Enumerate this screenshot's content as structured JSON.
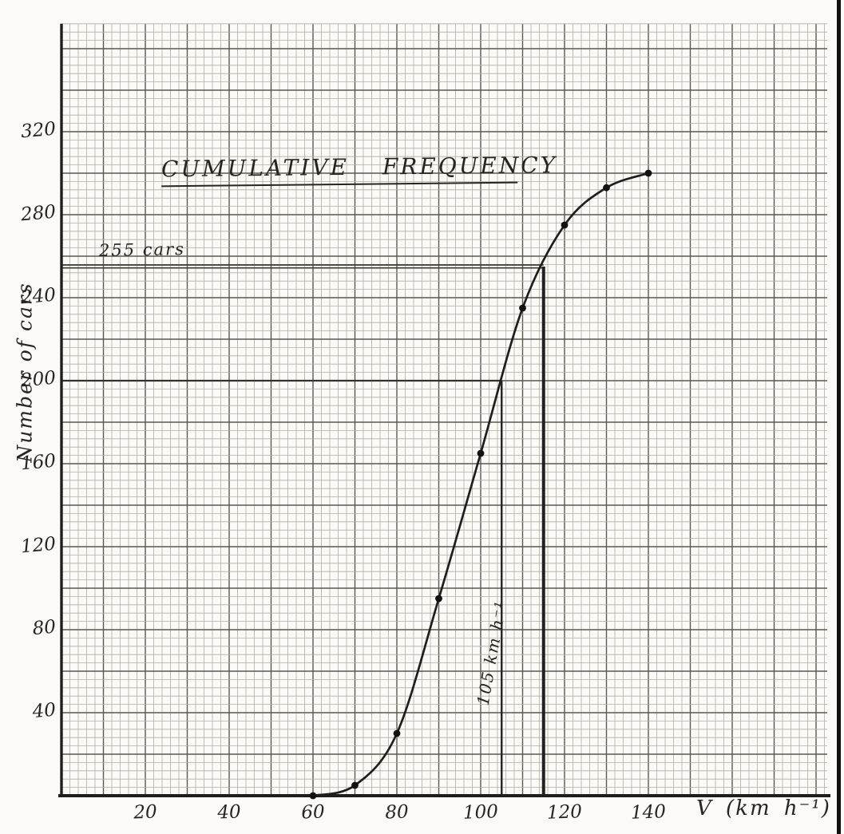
{
  "page": {
    "background": "#fbfaf6",
    "ink": "#1e1e1c",
    "pencil_minor": "#b3aea3",
    "pencil_bold": "#5d594f"
  },
  "chart_data": {
    "type": "line",
    "title": "CUMULATIVE FREQUENCY",
    "xlabel": "V  (km h⁻¹)",
    "ylabel": "Number of cars",
    "x": [
      60,
      70,
      80,
      90,
      100,
      110,
      120,
      130,
      140
    ],
    "values": [
      0,
      5,
      30,
      95,
      165,
      235,
      275,
      293,
      300
    ],
    "x_ticks": [
      20,
      40,
      60,
      80,
      100,
      120,
      140
    ],
    "y_ticks": [
      40,
      80,
      120,
      160,
      200,
      240,
      280,
      320
    ],
    "xlim": [
      0,
      183
    ],
    "ylim": [
      0,
      373
    ],
    "grid": "graph paper: minor cell = 2 km/h x 4 cars, bold line every 10 km/h x 20 cars",
    "legend_position": "none",
    "annotations": [
      {
        "label": "255 cars",
        "cars": 255,
        "speed": 115
      },
      {
        "label": "105 km h⁻¹",
        "cars": 200,
        "speed": 105
      }
    ]
  }
}
